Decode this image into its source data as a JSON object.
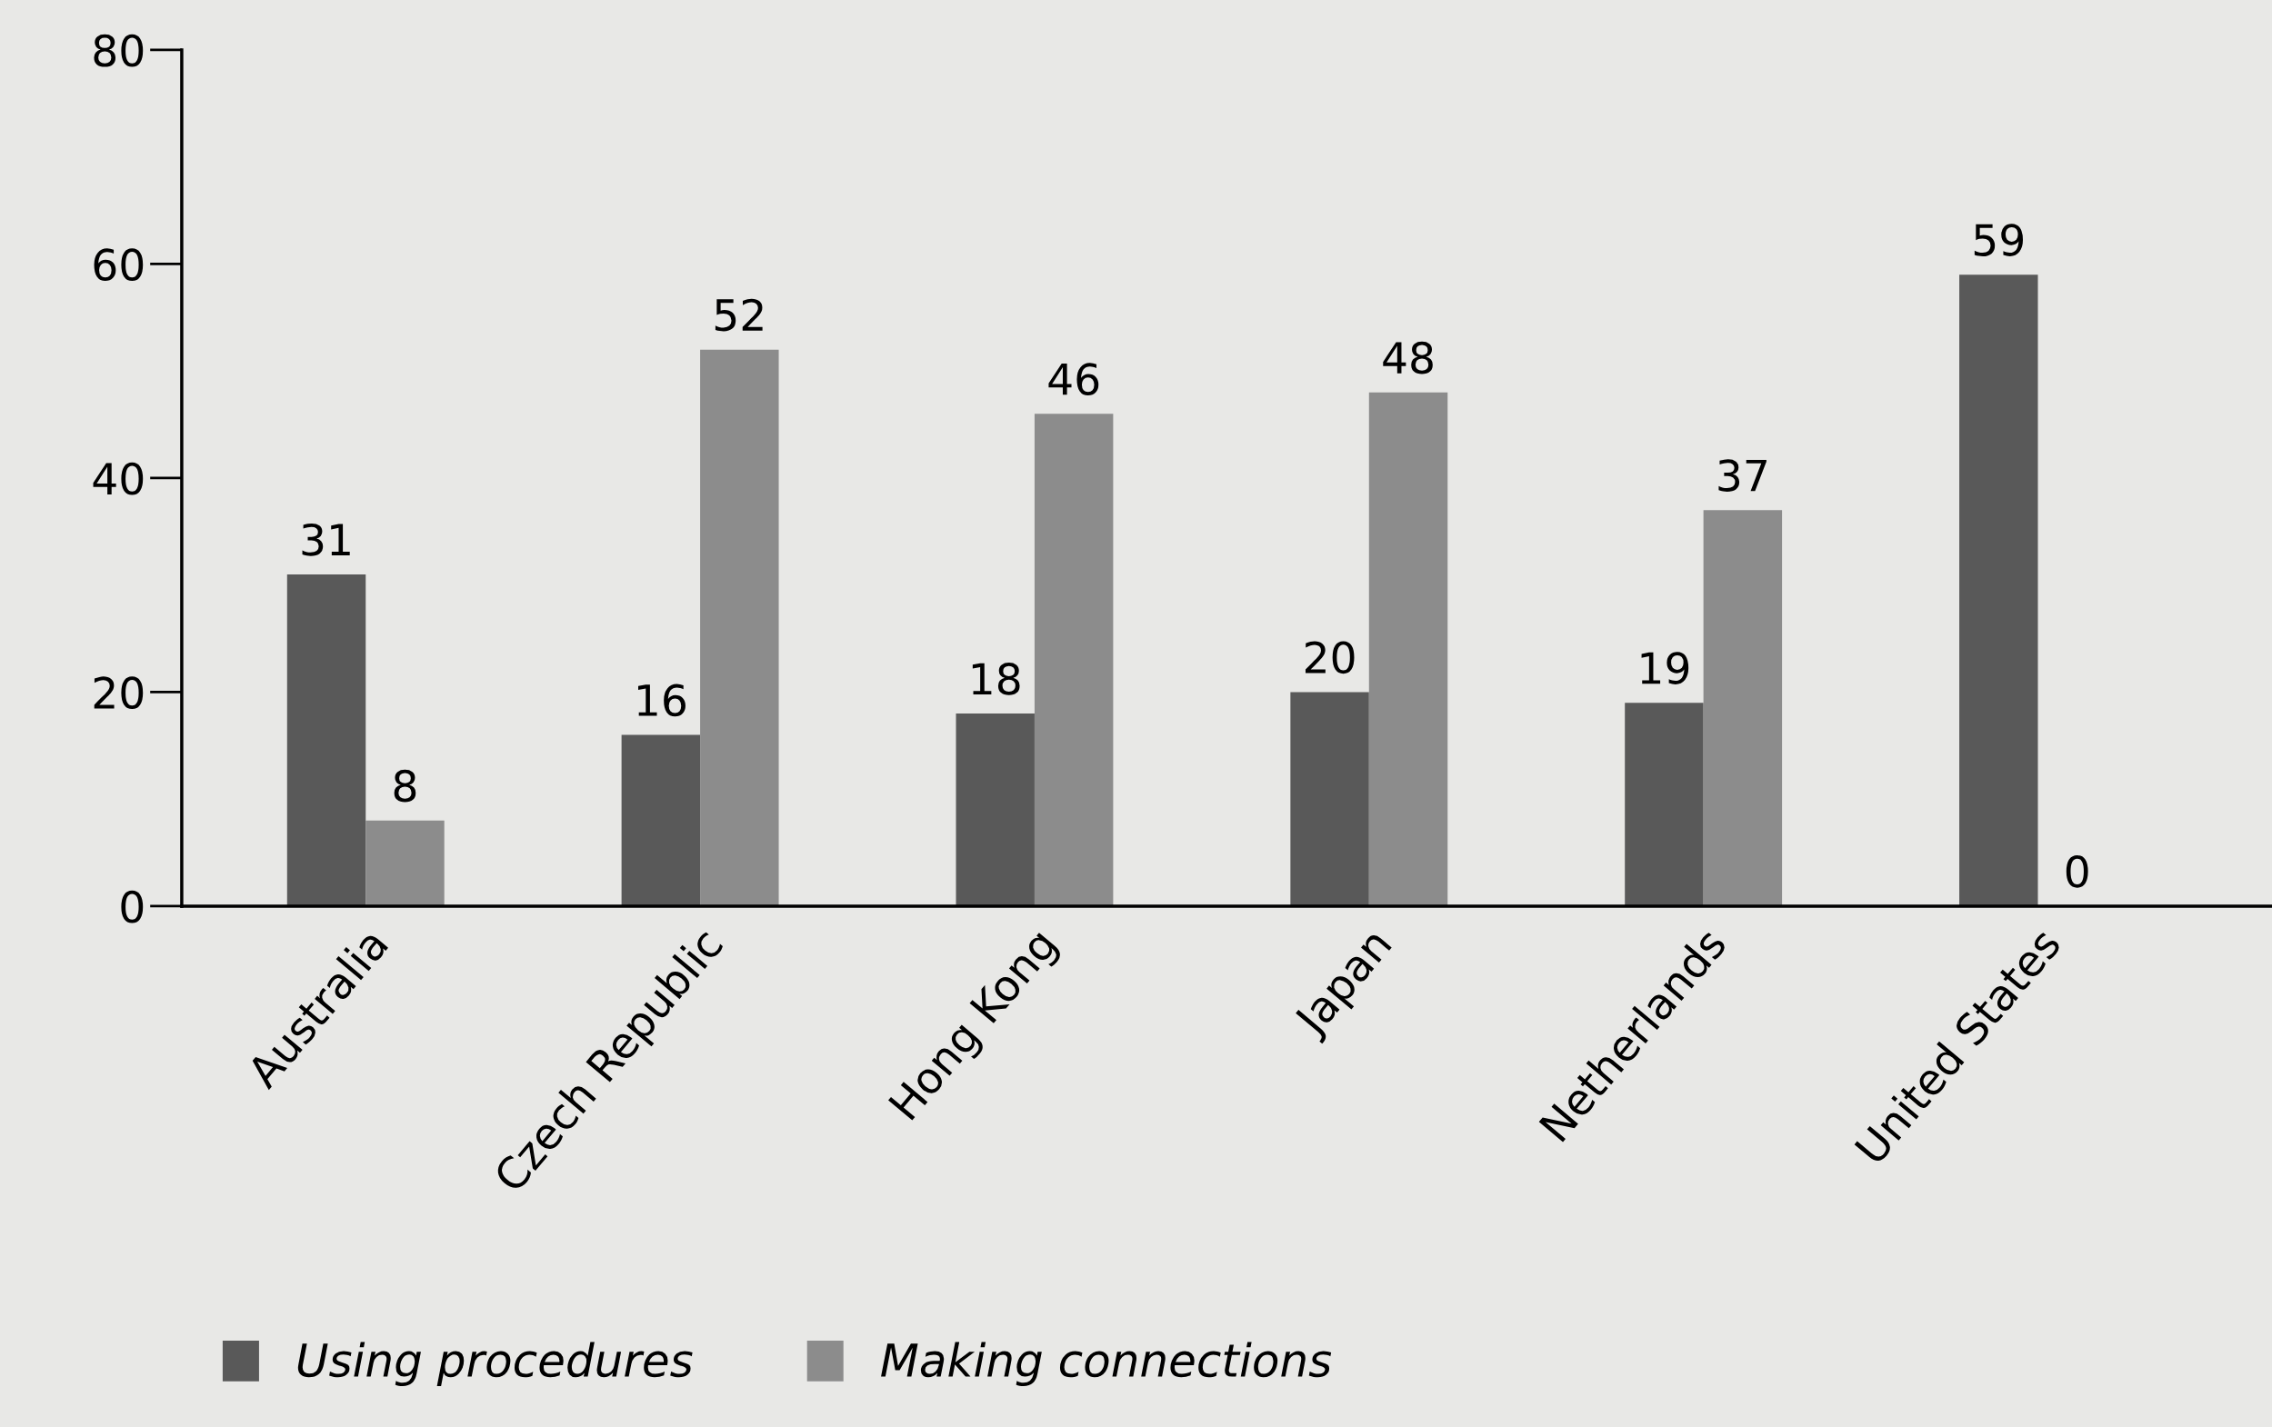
{
  "chart_data": {
    "type": "bar",
    "categories": [
      "Australia",
      "Czech Republic",
      "Hong Kong",
      "Japan",
      "Netherlands",
      "United States"
    ],
    "series": [
      {
        "name": "Using procedures",
        "color": "#595959",
        "values": [
          31,
          16,
          18,
          20,
          19,
          59
        ]
      },
      {
        "name": "Making connections",
        "color": "#8c8c8c",
        "values": [
          8,
          52,
          46,
          48,
          37,
          0
        ]
      }
    ],
    "ylim": [
      0,
      80
    ],
    "yticks": [
      0,
      20,
      40,
      60,
      80
    ],
    "grid": false,
    "legend": "bottom",
    "data_labels": true
  }
}
